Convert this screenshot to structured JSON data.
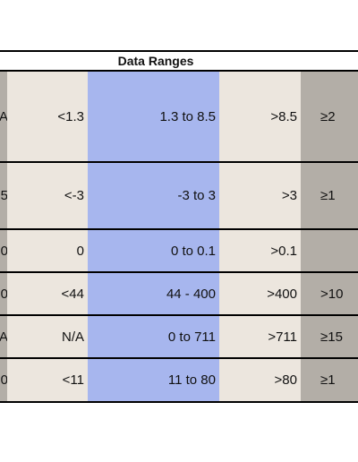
{
  "table": {
    "title": "Data Ranges",
    "rows": [
      {
        "edge": "A",
        "low": "<1.3",
        "range": "1.3 to 8.5",
        "high": ">8.5",
        "extreme": "≥2"
      },
      {
        "edge": "5",
        "low": "<-3",
        "range": "-3 to 3",
        "high": ">3",
        "extreme": "≥1"
      },
      {
        "edge": "0",
        "low": "0",
        "range": "0 to 0.1",
        "high": ">0.1",
        "extreme": ""
      },
      {
        "edge": "0",
        "low": "<44",
        "range": "44 - 400",
        "high": ">400",
        "extreme": ">10"
      },
      {
        "edge": "A",
        "low": "N/A",
        "range": "0 to 711",
        "high": ">711",
        "extreme": "≥15"
      },
      {
        "edge": "0",
        "low": "<11",
        "range": "11  to 80",
        "high": ">80",
        "extreme": "≥1"
      }
    ]
  },
  "colors": {
    "edge_column": "#b3aea7",
    "beige_column": "#ece6de",
    "blue_column": "#a7b6ee",
    "border": "#000000"
  }
}
